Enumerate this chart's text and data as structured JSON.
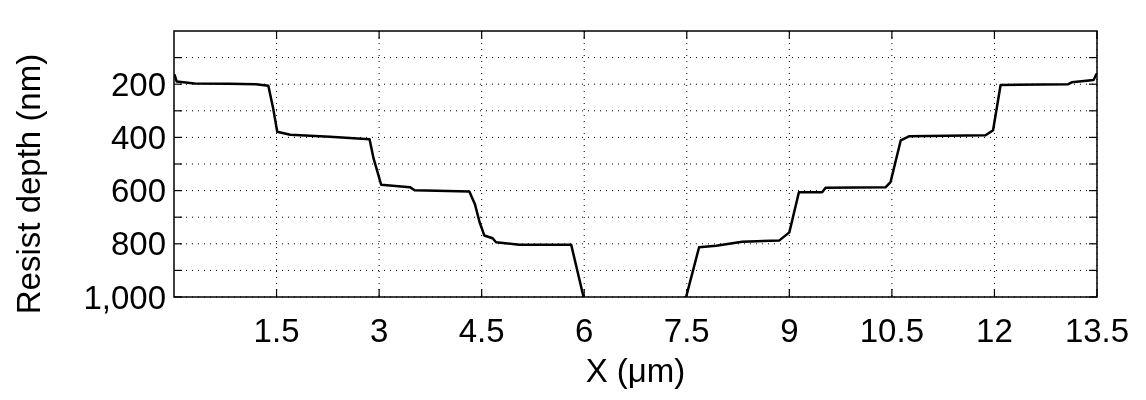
{
  "chart_data": {
    "type": "line",
    "xlabel": "X (μm)",
    "ylabel": "Resist depth (nm)",
    "xlim": [
      0,
      13.5
    ],
    "ylim": [
      1000,
      0
    ],
    "xticks": [
      1.5,
      3,
      4.5,
      6,
      7.5,
      9,
      10.5,
      12,
      13.5
    ],
    "yticks": [
      {
        "value": 100,
        "label": null
      },
      200,
      {
        "value": 300,
        "label": null
      },
      400,
      {
        "value": 500,
        "label": null
      },
      600,
      {
        "value": 700,
        "label": null
      },
      800,
      {
        "value": 900,
        "label": null
      },
      {
        "value": 1000,
        "label": "1,000"
      }
    ],
    "grid": true,
    "line_style": "solid",
    "marker": "none",
    "series": [
      {
        "color": "#000000",
        "x": [
          0.01,
          0.04,
          0.3,
          0.8,
          1.2,
          1.38,
          1.45,
          1.51,
          1.7,
          2.28,
          2.86,
          2.92,
          3.03,
          3.45,
          3.52,
          4.32,
          4.4,
          4.47,
          4.54,
          4.66,
          4.71,
          5.05,
          5.81,
          5.99,
          6.74,
          7.49,
          7.68,
          7.93,
          8.31,
          8.85,
          9.0,
          9.14,
          9.29,
          9.48,
          9.53,
          10.41,
          10.48,
          10.63,
          10.75,
          11.87,
          11.98,
          12.09,
          13.08,
          13.13,
          13.45,
          13.49
        ],
        "values": [
          166,
          190,
          197,
          198,
          200,
          206,
          290,
          379,
          390,
          398,
          407,
          480,
          578,
          587,
          599,
          603,
          650,
          719,
          769,
          779,
          794,
          804,
          804,
          1000,
          null,
          1000,
          813,
          807,
          792,
          788,
          757,
          606,
          606,
          606,
          589,
          587,
          568,
          411,
          396,
          392,
          373,
          203,
          200,
          193,
          184,
          163
        ]
      }
    ]
  }
}
